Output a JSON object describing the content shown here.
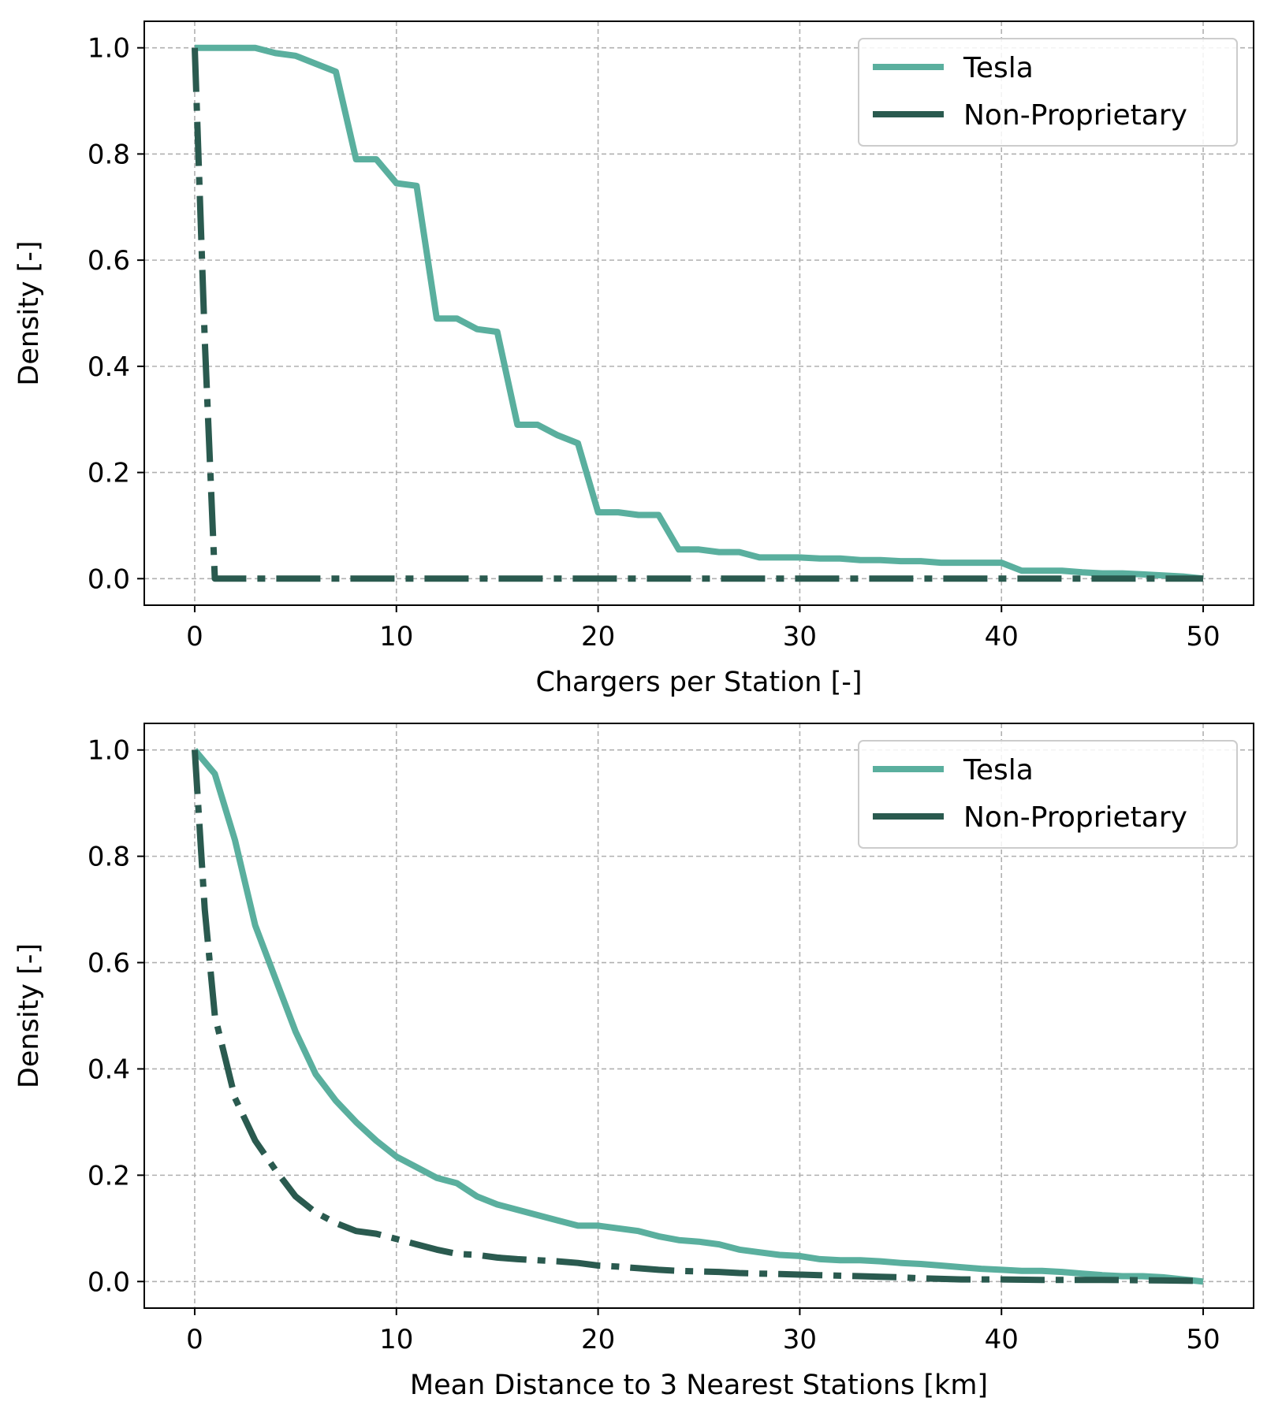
{
  "chart_data": [
    {
      "type": "line",
      "xlabel": "Chargers per Station [-]",
      "ylabel": "Density [-]",
      "xlim": [
        -2.5,
        52.5
      ],
      "ylim": [
        -0.05,
        1.05
      ],
      "xticks": [
        0,
        10,
        20,
        30,
        40,
        50
      ],
      "yticks": [
        0.0,
        0.2,
        0.4,
        0.6,
        0.8,
        1.0
      ],
      "xtick_labels": [
        "0",
        "10",
        "20",
        "30",
        "40",
        "50"
      ],
      "ytick_labels": [
        "0.0",
        "0.2",
        "0.4",
        "0.6",
        "0.8",
        "1.0"
      ],
      "grid": true,
      "legend_position": "top-right",
      "series": [
        {
          "name": "Tesla",
          "color": "#5aaf9e",
          "style": "solid",
          "points": [
            [
              0,
              1.0
            ],
            [
              1,
              1.0
            ],
            [
              2,
              1.0
            ],
            [
              3,
              1.0
            ],
            [
              4,
              0.99
            ],
            [
              5,
              0.985
            ],
            [
              6,
              0.97
            ],
            [
              7,
              0.955
            ],
            [
              8,
              0.79
            ],
            [
              9,
              0.79
            ],
            [
              10,
              0.745
            ],
            [
              11,
              0.74
            ],
            [
              12,
              0.49
            ],
            [
              13,
              0.49
            ],
            [
              14,
              0.47
            ],
            [
              15,
              0.465
            ],
            [
              16,
              0.29
            ],
            [
              17,
              0.29
            ],
            [
              18,
              0.27
            ],
            [
              19,
              0.255
            ],
            [
              20,
              0.125
            ],
            [
              21,
              0.125
            ],
            [
              22,
              0.12
            ],
            [
              23,
              0.12
            ],
            [
              24,
              0.055
            ],
            [
              25,
              0.055
            ],
            [
              26,
              0.05
            ],
            [
              27,
              0.05
            ],
            [
              28,
              0.04
            ],
            [
              29,
              0.04
            ],
            [
              30,
              0.04
            ],
            [
              31,
              0.038
            ],
            [
              32,
              0.038
            ],
            [
              33,
              0.035
            ],
            [
              34,
              0.035
            ],
            [
              35,
              0.033
            ],
            [
              36,
              0.033
            ],
            [
              37,
              0.03
            ],
            [
              38,
              0.03
            ],
            [
              39,
              0.03
            ],
            [
              40,
              0.03
            ],
            [
              41,
              0.015
            ],
            [
              42,
              0.015
            ],
            [
              43,
              0.015
            ],
            [
              44,
              0.012
            ],
            [
              45,
              0.01
            ],
            [
              46,
              0.01
            ],
            [
              47,
              0.008
            ],
            [
              48,
              0.006
            ],
            [
              49,
              0.004
            ],
            [
              50,
              0.0
            ]
          ]
        },
        {
          "name": "Non-Proprietary",
          "color": "#2a5a4f",
          "style": "dashdot",
          "points": [
            [
              0,
              1.0
            ],
            [
              0.5,
              0.45
            ],
            [
              1,
              0.0
            ],
            [
              2,
              0.0
            ],
            [
              10,
              0.0
            ],
            [
              20,
              0.0
            ],
            [
              30,
              0.0
            ],
            [
              40,
              0.0
            ],
            [
              50,
              0.0
            ]
          ]
        }
      ]
    },
    {
      "type": "line",
      "xlabel": "Mean Distance to 3 Nearest Stations [km]",
      "ylabel": "Density [-]",
      "xlim": [
        -2.5,
        52.5
      ],
      "ylim": [
        -0.05,
        1.05
      ],
      "xticks": [
        0,
        10,
        20,
        30,
        40,
        50
      ],
      "yticks": [
        0.0,
        0.2,
        0.4,
        0.6,
        0.8,
        1.0
      ],
      "xtick_labels": [
        "0",
        "10",
        "20",
        "30",
        "40",
        "50"
      ],
      "ytick_labels": [
        "0.0",
        "0.2",
        "0.4",
        "0.6",
        "0.8",
        "1.0"
      ],
      "grid": true,
      "legend_position": "top-right",
      "series": [
        {
          "name": "Tesla",
          "color": "#5aaf9e",
          "style": "solid",
          "points": [
            [
              0,
              1.0
            ],
            [
              1,
              0.955
            ],
            [
              2,
              0.83
            ],
            [
              3,
              0.67
            ],
            [
              4,
              0.57
            ],
            [
              5,
              0.47
            ],
            [
              6,
              0.39
            ],
            [
              7,
              0.34
            ],
            [
              8,
              0.3
            ],
            [
              9,
              0.265
            ],
            [
              10,
              0.235
            ],
            [
              11,
              0.215
            ],
            [
              12,
              0.195
            ],
            [
              13,
              0.185
            ],
            [
              14,
              0.16
            ],
            [
              15,
              0.145
            ],
            [
              16,
              0.135
            ],
            [
              17,
              0.125
            ],
            [
              18,
              0.115
            ],
            [
              19,
              0.105
            ],
            [
              20,
              0.105
            ],
            [
              21,
              0.1
            ],
            [
              22,
              0.095
            ],
            [
              23,
              0.085
            ],
            [
              24,
              0.078
            ],
            [
              25,
              0.075
            ],
            [
              26,
              0.07
            ],
            [
              27,
              0.06
            ],
            [
              28,
              0.055
            ],
            [
              29,
              0.05
            ],
            [
              30,
              0.048
            ],
            [
              31,
              0.042
            ],
            [
              32,
              0.04
            ],
            [
              33,
              0.04
            ],
            [
              34,
              0.038
            ],
            [
              35,
              0.035
            ],
            [
              36,
              0.033
            ],
            [
              37,
              0.03
            ],
            [
              38,
              0.027
            ],
            [
              39,
              0.024
            ],
            [
              40,
              0.022
            ],
            [
              41,
              0.02
            ],
            [
              42,
              0.02
            ],
            [
              43,
              0.018
            ],
            [
              44,
              0.015
            ],
            [
              45,
              0.012
            ],
            [
              46,
              0.01
            ],
            [
              47,
              0.01
            ],
            [
              48,
              0.008
            ],
            [
              49,
              0.004
            ],
            [
              50,
              0.0
            ]
          ]
        },
        {
          "name": "Non-Proprietary",
          "color": "#2a5a4f",
          "style": "dashdot",
          "points": [
            [
              0,
              1.0
            ],
            [
              0.5,
              0.7
            ],
            [
              1,
              0.5
            ],
            [
              2,
              0.345
            ],
            [
              3,
              0.265
            ],
            [
              4,
              0.21
            ],
            [
              5,
              0.16
            ],
            [
              6,
              0.13
            ],
            [
              7,
              0.11
            ],
            [
              8,
              0.095
            ],
            [
              9,
              0.09
            ],
            [
              10,
              0.08
            ],
            [
              11,
              0.07
            ],
            [
              12,
              0.06
            ],
            [
              13,
              0.052
            ],
            [
              14,
              0.05
            ],
            [
              15,
              0.045
            ],
            [
              16,
              0.042
            ],
            [
              17,
              0.04
            ],
            [
              18,
              0.038
            ],
            [
              19,
              0.035
            ],
            [
              20,
              0.03
            ],
            [
              21,
              0.028
            ],
            [
              22,
              0.025
            ],
            [
              23,
              0.022
            ],
            [
              24,
              0.02
            ],
            [
              25,
              0.019
            ],
            [
              26,
              0.018
            ],
            [
              27,
              0.016
            ],
            [
              28,
              0.015
            ],
            [
              29,
              0.014
            ],
            [
              30,
              0.013
            ],
            [
              31,
              0.012
            ],
            [
              32,
              0.011
            ],
            [
              33,
              0.01
            ],
            [
              34,
              0.009
            ],
            [
              35,
              0.008
            ],
            [
              36,
              0.006
            ],
            [
              37,
              0.005
            ],
            [
              38,
              0.004
            ],
            [
              40,
              0.004
            ],
            [
              42,
              0.003
            ],
            [
              45,
              0.003
            ],
            [
              48,
              0.002
            ],
            [
              50,
              0.001
            ]
          ]
        }
      ]
    }
  ]
}
